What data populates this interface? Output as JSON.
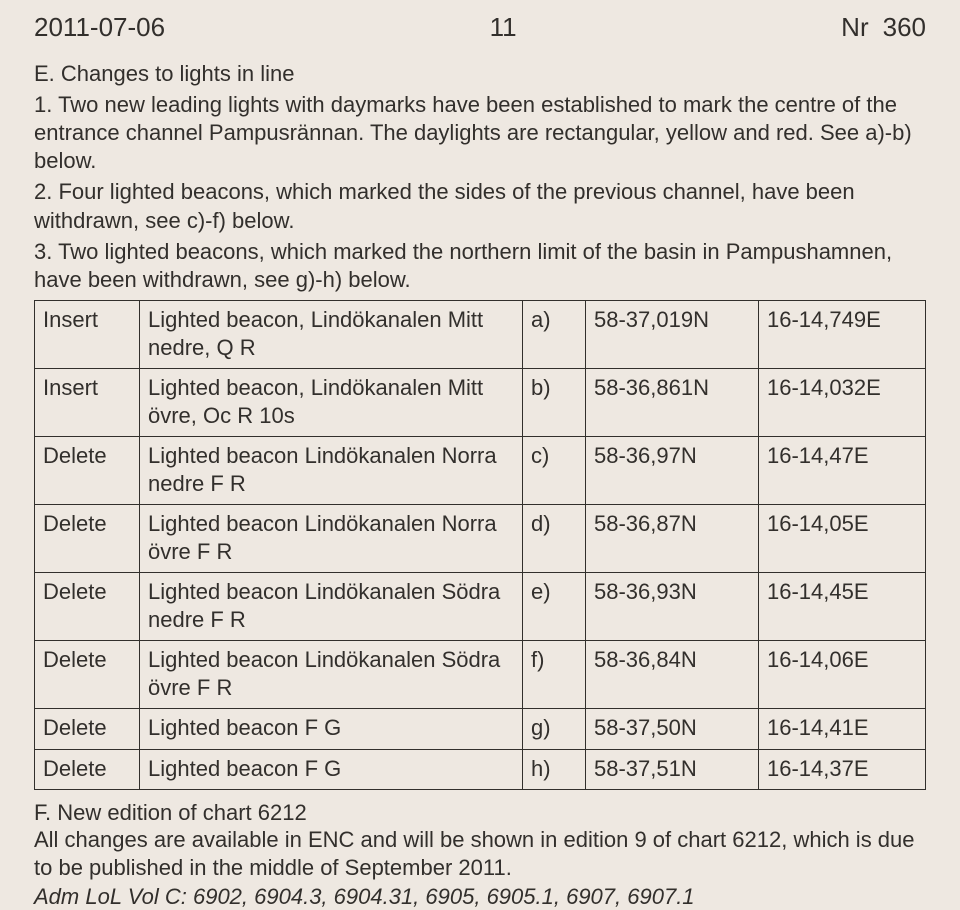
{
  "header": {
    "date": "2011-07-06",
    "page": "11",
    "nr_label": "Nr",
    "nr_value": "360"
  },
  "sectionE": {
    "title": "E. Changes to lights in line",
    "p1": "1. Two new leading lights with daymarks have been established to mark the centre of the entrance channel Pampusrännan. The daylights are rectangular, yellow and red. See a)-b) below.",
    "p2": "2. Four lighted beacons, which marked the sides of the previous channel, have been withdrawn, see c)-f) below.",
    "p3": "3. Two lighted beacons, which marked the northern limit of the basin in Pampushamnen, have been withdrawn, see g)-h) below."
  },
  "rows": [
    {
      "action": "Insert",
      "desc": "Lighted beacon, Lindökanalen Mitt nedre, Q R",
      "ref": "a)",
      "lat": "58-37,019N",
      "lon": "16-14,749E"
    },
    {
      "action": "Insert",
      "desc": "Lighted beacon, Lindökanalen Mitt övre, Oc R 10s",
      "ref": "b)",
      "lat": "58-36,861N",
      "lon": "16-14,032E"
    },
    {
      "action": "Delete",
      "desc": "Lighted beacon Lindökanalen Norra nedre F R",
      "ref": "c)",
      "lat": "58-36,97N",
      "lon": "16-14,47E"
    },
    {
      "action": "Delete",
      "desc": "Lighted beacon Lindökanalen Norra övre F R",
      "ref": "d)",
      "lat": "58-36,87N",
      "lon": "16-14,05E"
    },
    {
      "action": "Delete",
      "desc": "Lighted beacon Lindökanalen Södra nedre F R",
      "ref": "e)",
      "lat": "58-36,93N",
      "lon": "16-14,45E"
    },
    {
      "action": "Delete",
      "desc": "Lighted beacon Lindökanalen Södra övre F R",
      "ref": "f)",
      "lat": "58-36,84N",
      "lon": "16-14,06E"
    },
    {
      "action": "Delete",
      "desc": "Lighted beacon F G",
      "ref": "g)",
      "lat": "58-37,50N",
      "lon": "16-14,41E"
    },
    {
      "action": "Delete",
      "desc": "Lighted beacon F G",
      "ref": "h)",
      "lat": "58-37,51N",
      "lon": "16-14,37E"
    }
  ],
  "sectionF": {
    "title": "F. New edition of chart 6212",
    "text": "All changes are available in ENC and will be shown in edition 9 of chart 6212, which is due to be published in the middle of September 2011.",
    "italic": "Adm LoL Vol C: 6902, 6904.3, 6904.31, 6905, 6905.1, 6907, 6907.1"
  }
}
